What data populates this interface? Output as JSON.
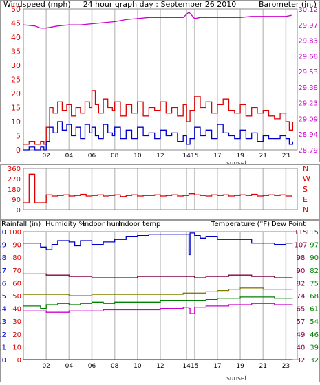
{
  "header": {
    "title": "24 hour graph day : September 26 2010",
    "left_label": "Windspeed (mph)",
    "right_label": "Barometer (in.)"
  },
  "bottom_header": {
    "rainfall": "Rainfall (in)",
    "humidity": "Humidity %",
    "indoor_hum": "Indoor hum",
    "indoor_temp": "Indoor temp",
    "temperature": "Temperature (°F)",
    "dew_point": "Dew Point"
  },
  "sunset_label": "sunset",
  "colors": {
    "windspeed": "#0000cc",
    "gust": "#dd0000",
    "barometer": "#cc00cc",
    "direction": "#dd0000",
    "humidity": "#0000cc",
    "indoor_hum": "#808000",
    "indoor_temp": "#800040",
    "temperature": "#008000",
    "dew_point": "#cc00cc",
    "rainfall": "#dd0000"
  },
  "chart_data": [
    {
      "type": "line",
      "x_ticks": [
        "02",
        "04",
        "06",
        "08",
        "10",
        "12",
        "14",
        "15",
        "17",
        "19",
        "21",
        "23"
      ],
      "y_left": {
        "label": "Windspeed (mph)",
        "range": [
          0,
          50
        ],
        "ticks": [
          "0",
          "5",
          "10",
          "15",
          "20",
          "25",
          "30",
          "35",
          "40",
          "45",
          "50"
        ]
      },
      "y_right": {
        "label": "Barometer (in.)",
        "range": [
          28.79,
          30.12
        ],
        "ticks": [
          "28.79",
          "28.94",
          "29.09",
          "29.23",
          "29.38",
          "29.53",
          "29.68",
          "29.83",
          "29.97",
          "30.12"
        ]
      },
      "series": [
        {
          "name": "Barometer (in.)",
          "axis": "right",
          "key": "barometer",
          "x": [
            0,
            1,
            1.5,
            2,
            3,
            4,
            5,
            6,
            7,
            8,
            9,
            10,
            11,
            12,
            13,
            14,
            14.5,
            15,
            15.5,
            16,
            17,
            18,
            19,
            20,
            21,
            22,
            23,
            23.5
          ],
          "y": [
            29.97,
            29.96,
            29.94,
            29.94,
            29.96,
            29.97,
            29.97,
            29.98,
            29.99,
            30.0,
            30.02,
            30.03,
            30.04,
            30.04,
            30.04,
            30.04,
            30.09,
            30.03,
            30.04,
            30.04,
            30.04,
            30.04,
            30.04,
            30.05,
            30.05,
            30.05,
            30.05,
            30.06
          ]
        },
        {
          "key": "gust",
          "axis": "left",
          "x": [
            0,
            0.5,
            1,
            1.5,
            1.8,
            2,
            2.3,
            2.6,
            3,
            3.4,
            3.8,
            4.2,
            4.6,
            5,
            5.4,
            5.8,
            6,
            6.3,
            6.6,
            7,
            7.4,
            7.8,
            8,
            8.5,
            9,
            9.5,
            10,
            10.5,
            11,
            11.5,
            12,
            12.5,
            13,
            13.5,
            14,
            14.3,
            14.6,
            15,
            15.5,
            16,
            16.5,
            17,
            17.5,
            18,
            18.5,
            19,
            19.5,
            20,
            20.5,
            21,
            21.5,
            22,
            22.5,
            23,
            23.3,
            23.6
          ],
          "y": [
            2,
            3,
            2,
            3,
            2,
            8,
            15,
            13,
            17,
            14,
            16,
            12,
            15,
            13,
            17,
            15,
            21,
            16,
            13,
            18,
            15,
            14,
            17,
            12,
            16,
            13,
            17,
            12,
            15,
            14,
            17,
            13,
            15,
            12,
            16,
            10,
            14,
            19,
            15,
            17,
            13,
            16,
            18,
            14,
            13,
            16,
            12,
            15,
            13,
            14,
            12,
            11,
            13,
            10,
            7,
            10
          ]
        },
        {
          "key": "windspeed",
          "axis": "left",
          "x": [
            0,
            0.5,
            1,
            1.5,
            1.8,
            2,
            2.3,
            2.6,
            3,
            3.4,
            3.8,
            4.2,
            4.6,
            5,
            5.4,
            5.8,
            6,
            6.3,
            6.6,
            7,
            7.4,
            7.8,
            8,
            8.5,
            9,
            9.5,
            10,
            10.5,
            11,
            11.5,
            12,
            12.5,
            13,
            13.5,
            14,
            14.3,
            14.6,
            15,
            15.5,
            16,
            16.5,
            17,
            17.5,
            18,
            18.5,
            19,
            19.5,
            20,
            20.5,
            21,
            21.5,
            22,
            22.5,
            23,
            23.3,
            23.6
          ],
          "y": [
            0,
            1,
            0,
            1,
            0,
            3,
            8,
            6,
            10,
            7,
            9,
            5,
            8,
            4,
            9,
            6,
            8,
            5,
            4,
            9,
            6,
            5,
            8,
            4,
            7,
            4,
            8,
            5,
            6,
            4,
            7,
            5,
            6,
            3,
            5,
            2,
            4,
            8,
            5,
            7,
            4,
            9,
            6,
            5,
            4,
            7,
            4,
            6,
            3,
            5,
            4,
            4,
            5,
            4,
            2,
            3
          ]
        }
      ]
    },
    {
      "type": "line",
      "x_ticks": [
        "02",
        "04",
        "06",
        "08",
        "10",
        "12",
        "14",
        "15",
        "17",
        "19",
        "21",
        "23"
      ],
      "y_left": {
        "range": [
          0,
          360
        ],
        "ticks": [
          "0",
          "90",
          "180",
          "270",
          "360"
        ]
      },
      "y_right_labels": [
        "N",
        "W",
        "S",
        "E",
        "N"
      ],
      "series": [
        {
          "key": "direction",
          "x": [
            0,
            0.3,
            0.5,
            0.6,
            1.0,
            1.2,
            1.5,
            2.0,
            2.5,
            3,
            3.5,
            4,
            4.5,
            5,
            5.5,
            6,
            6.5,
            7,
            7.5,
            8,
            8.5,
            9,
            9.5,
            10,
            10.5,
            11,
            11.5,
            12,
            12.5,
            13,
            13.5,
            14,
            14.5,
            15,
            15.5,
            16,
            16.5,
            17,
            17.5,
            18,
            18.5,
            19,
            19.5,
            20,
            20.5,
            21,
            21.5,
            22,
            22.5,
            23,
            23.5
          ],
          "y": [
            60,
            60,
            310,
            310,
            60,
            60,
            60,
            130,
            120,
            125,
            130,
            120,
            125,
            135,
            120,
            125,
            130,
            120,
            125,
            130,
            115,
            125,
            130,
            120,
            125,
            125,
            130,
            120,
            125,
            130,
            120,
            125,
            140,
            130,
            125,
            120,
            130,
            125,
            130,
            120,
            125,
            130,
            125,
            135,
            120,
            125,
            130,
            125,
            130,
            120,
            125
          ]
        }
      ]
    },
    {
      "type": "line",
      "x_ticks": [
        "02",
        "04",
        "06",
        "08",
        "10",
        "12",
        "14",
        "15",
        "17",
        "19",
        "21",
        "23"
      ],
      "y_left_outer": {
        "label": "Rainfall (in)",
        "range": [
          0.0,
          1.0
        ],
        "ticks": [
          "0.0",
          "0.1",
          "0.2",
          "0.3",
          "0.4",
          "0.5",
          "0.6",
          "0.7",
          "0.8",
          "0.9",
          "1.0"
        ]
      },
      "y_left_inner": {
        "label": "Humidity %",
        "range": [
          0,
          100
        ],
        "ticks": [
          "0",
          "10",
          "20",
          "30",
          "40",
          "50",
          "60",
          "70",
          "80",
          "90",
          "100"
        ]
      },
      "y_right_inner": {
        "label": "Indoor temp",
        "range": [
          32,
          115
        ],
        "ticks": [
          "32",
          "40",
          "49",
          "57",
          "65",
          "74",
          "82",
          "90",
          "98",
          "107",
          "115"
        ]
      },
      "y_right_outer": {
        "label": "Temperature (°F)",
        "range": [
          32,
          115
        ],
        "ticks": [
          "32",
          "39",
          "46",
          "54",
          "61",
          "68",
          "75",
          "82",
          "90",
          "97",
          "115"
        ]
      },
      "series": [
        {
          "name": "Humidity %",
          "key": "humidity",
          "axis": "percent",
          "x": [
            0,
            1,
            1.5,
            2,
            2.5,
            3,
            4,
            4.5,
            5,
            6,
            7,
            8,
            9,
            10,
            11,
            12,
            13,
            14,
            14.5,
            14.6,
            15,
            15.5,
            16,
            17,
            18,
            19,
            20,
            21,
            22,
            23,
            23.6
          ],
          "y": [
            91,
            91,
            88,
            86,
            90,
            93,
            92,
            89,
            93,
            90,
            92,
            94,
            96,
            97,
            98,
            98,
            98,
            98,
            82,
            99,
            97,
            95,
            96,
            94,
            94,
            94,
            91,
            91,
            90,
            91,
            91
          ]
        },
        {
          "name": "Indoor temp",
          "key": "indoor_temp",
          "axis": "percent",
          "x": [
            0,
            2,
            4,
            6,
            8,
            10,
            12,
            14,
            15,
            16,
            18,
            20,
            22,
            23.6
          ],
          "y": [
            67,
            66,
            65,
            64,
            64,
            65,
            65,
            65,
            64,
            65,
            66,
            65,
            64,
            64
          ]
        },
        {
          "name": "Indoor hum",
          "key": "indoor_hum",
          "axis": "percent",
          "x": [
            0,
            2,
            4,
            6,
            8,
            10,
            12,
            14,
            15,
            16,
            17,
            18,
            19,
            20,
            21,
            22,
            23.6
          ],
          "y": [
            51,
            51,
            50,
            51,
            51,
            51,
            51,
            52,
            52,
            53,
            54,
            55,
            56,
            56,
            55,
            55,
            55
          ]
        },
        {
          "name": "Temperature (°F)",
          "key": "temperature",
          "axis": "percent",
          "x": [
            0,
            1,
            1.5,
            2,
            3,
            4,
            5,
            6,
            7,
            8,
            10,
            12,
            14,
            15,
            16,
            17,
            18,
            19,
            20,
            22,
            23.6
          ],
          "y": [
            42,
            42,
            40,
            43,
            44,
            43,
            44,
            45,
            44,
            45,
            45,
            46,
            46,
            46,
            47,
            48,
            48,
            49,
            49,
            48,
            48
          ]
        },
        {
          "name": "Dew Point",
          "key": "dew_point",
          "axis": "percent",
          "x": [
            0,
            1,
            2,
            3,
            4,
            5,
            6,
            7,
            8,
            10,
            12,
            14,
            14.5,
            14.6,
            15,
            16,
            18,
            20,
            22,
            23.6
          ],
          "y": [
            38,
            38,
            37,
            37,
            38,
            38,
            38,
            39,
            39,
            39,
            40,
            41,
            40,
            36,
            41,
            42,
            43,
            44,
            43,
            43
          ]
        },
        {
          "name": "Rainfall (in)",
          "key": "rainfall",
          "axis": "percent",
          "x": [
            0,
            23.6
          ],
          "y": [
            0,
            0
          ]
        }
      ]
    }
  ]
}
